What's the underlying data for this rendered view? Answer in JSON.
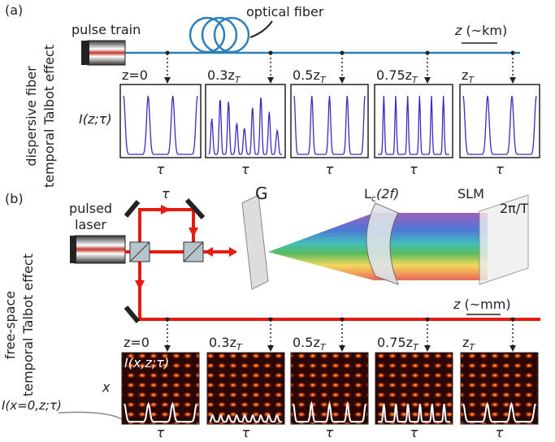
{
  "panel_a": {
    "label": "(a)",
    "source": "pulse train",
    "fiber": "optical fiber",
    "axis_var": "z",
    "axis_unit": "(~km)",
    "side_label": [
      "dispersive fiber",
      "temporal Talbot effect"
    ],
    "y_label": "I(z;τ)",
    "plots": [
      {
        "z": "z=0",
        "time": "τ"
      },
      {
        "z": "0.3z",
        "sub": "T",
        "time": "τ"
      },
      {
        "z": "0.5z",
        "sub": "T",
        "time": "τ"
      },
      {
        "z": "0.75z",
        "sub": "T",
        "time": "τ"
      },
      {
        "z": "z",
        "sub": "T",
        "time": "τ"
      }
    ]
  },
  "panel_b": {
    "label": "(b)",
    "source": [
      "pulsed",
      "laser"
    ],
    "delay": "τ",
    "grating": "G",
    "lens": "L",
    "lens_sub": "c",
    "lens_arg": "(2f)",
    "slm": "SLM",
    "period": "2π/T",
    "axis_var": "z",
    "axis_unit": "(~mm)",
    "side_label": [
      "free-space",
      "temporal Talbot effect"
    ],
    "image_label": "I(x,z;τ)",
    "x_label": "x",
    "trace_label": "I(x=0,z;τ)",
    "plots": [
      {
        "z": "z=0",
        "time": "τ"
      },
      {
        "z": "0.3z",
        "sub": "T",
        "time": "τ"
      },
      {
        "z": "0.5z",
        "sub": "T",
        "time": "τ"
      },
      {
        "z": "0.75z",
        "sub": "T",
        "time": "τ"
      },
      {
        "z": "z",
        "sub": "T",
        "time": "τ"
      }
    ]
  }
}
